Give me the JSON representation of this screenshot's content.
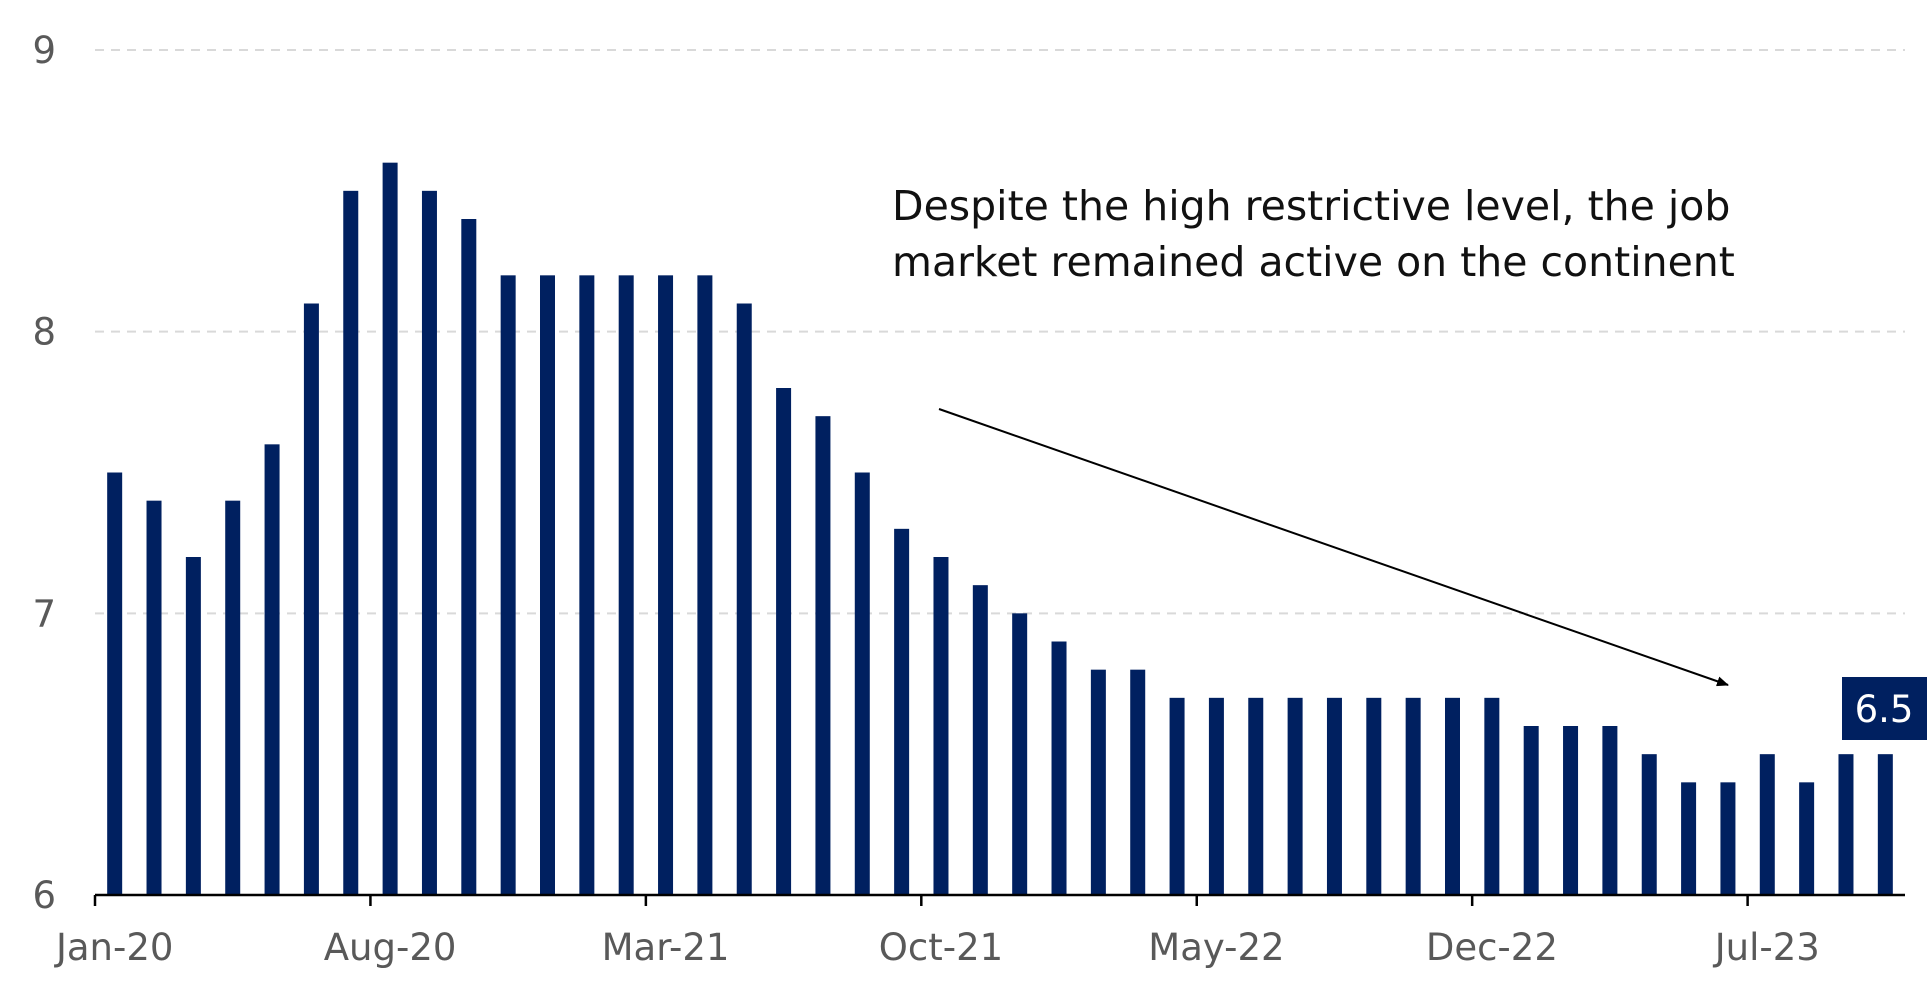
{
  "chart_data": {
    "type": "bar",
    "title": "",
    "xlabel": "",
    "ylabel": "",
    "ylim": [
      6,
      9
    ],
    "yticks": [
      "6",
      "7",
      "8",
      "9"
    ],
    "grid": true,
    "legend": "none",
    "bar_color": "#002060",
    "categories": [
      "Jan-20",
      "Feb-20",
      "Mar-20",
      "Apr-20",
      "May-20",
      "Jun-20",
      "Jul-20",
      "Aug-20",
      "Sep-20",
      "Oct-20",
      "Nov-20",
      "Dec-20",
      "Jan-21",
      "Feb-21",
      "Mar-21",
      "Apr-21",
      "May-21",
      "Jun-21",
      "Jul-21",
      "Aug-21",
      "Sep-21",
      "Oct-21",
      "Nov-21",
      "Dec-21",
      "Jan-22",
      "Feb-22",
      "Mar-22",
      "Apr-22",
      "May-22",
      "Jun-22",
      "Jul-22",
      "Aug-22",
      "Sep-22",
      "Oct-22",
      "Nov-22",
      "Dec-22",
      "Jan-23",
      "Feb-23",
      "Mar-23",
      "Apr-23",
      "May-23",
      "Jun-23",
      "Jul-23",
      "Aug-23",
      "Sep-23",
      "Oct-23"
    ],
    "values": [
      7.5,
      7.4,
      7.2,
      7.4,
      7.6,
      8.1,
      8.5,
      8.6,
      8.5,
      8.4,
      8.2,
      8.2,
      8.2,
      8.2,
      8.2,
      8.2,
      8.1,
      7.8,
      7.7,
      7.5,
      7.3,
      7.2,
      7.1,
      7.0,
      6.9,
      6.8,
      6.8,
      6.7,
      6.7,
      6.7,
      6.7,
      6.7,
      6.7,
      6.7,
      6.7,
      6.7,
      6.6,
      6.6,
      6.6,
      6.5,
      6.4,
      6.4,
      6.5,
      6.4,
      6.5,
      6.5
    ],
    "xtick_labels": [
      "Jan-20",
      "Aug-20",
      "Mar-21",
      "Oct-21",
      "May-22",
      "Dec-22",
      "Jul-23"
    ],
    "annotation": {
      "lines": [
        "Despite the high restrictive level, the job",
        "market remained active on the continent"
      ]
    },
    "last_value_label": "6.5",
    "label_box_color": "#002060"
  }
}
